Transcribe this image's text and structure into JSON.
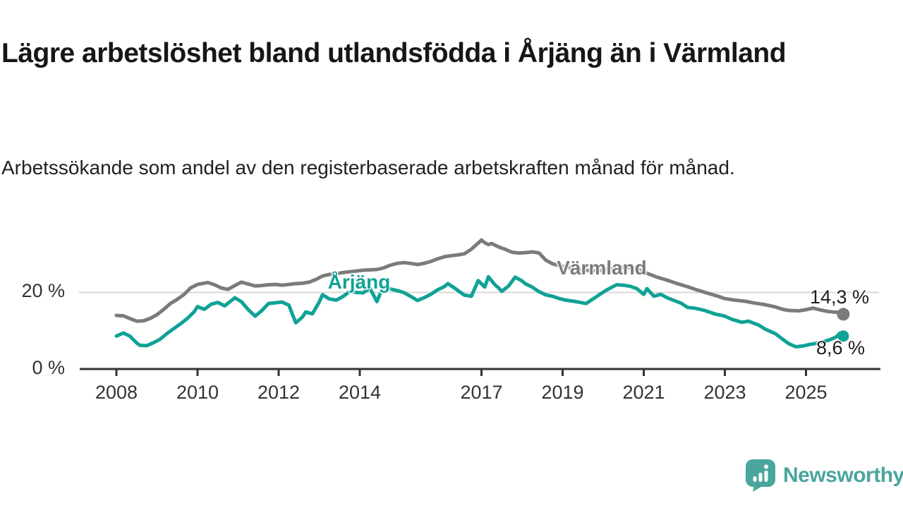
{
  "title": "Lägre arbetslöshet bland utlandsfödda i Årjäng än i Värmland",
  "subtitle": "Arbetssökande som andel av den registerbaserade arbetskraften månad för månad.",
  "branding": {
    "logo_text": "Newsworthy",
    "logo_color": "#4aa59d"
  },
  "chart_data": {
    "type": "line",
    "title": "Lägre arbetslöshet bland utlandsfödda i Årjäng än i Värmland",
    "subtitle": "Arbetssökande som andel av den registerbaserade arbetskraften månad för månad.",
    "unit": "%",
    "x_range": [
      2008,
      2026
    ],
    "ylim": [
      0,
      36
    ],
    "grid": "horizontal line at 20 % only",
    "legend_position": "inline labels on lines",
    "y_ticks": [
      {
        "label": "0 %",
        "value": 0
      },
      {
        "label": "20 %",
        "value": 20
      }
    ],
    "x_ticks": [
      {
        "label": "2008",
        "year": 2008
      },
      {
        "label": "2010",
        "year": 2010
      },
      {
        "label": "2012",
        "year": 2012
      },
      {
        "label": "2014",
        "year": 2014
      },
      {
        "label": "2017",
        "year": 2017
      },
      {
        "label": "2019",
        "year": 2019
      },
      {
        "label": "2021",
        "year": 2021
      },
      {
        "label": "2023",
        "year": 2023
      },
      {
        "label": "2025",
        "year": 2025
      }
    ],
    "series": [
      {
        "name": "Värmland",
        "color": "#7b7b7b",
        "end_label": "14,3 %",
        "end_value": 14.3,
        "points": [
          [
            2008.0,
            14.0
          ],
          [
            2008.17,
            13.9
          ],
          [
            2008.33,
            13.2
          ],
          [
            2008.5,
            12.5
          ],
          [
            2008.67,
            12.6
          ],
          [
            2008.83,
            13.2
          ],
          [
            2009.0,
            14.2
          ],
          [
            2009.17,
            15.6
          ],
          [
            2009.33,
            17.1
          ],
          [
            2009.5,
            18.2
          ],
          [
            2009.67,
            19.5
          ],
          [
            2009.83,
            21.2
          ],
          [
            2010.0,
            22.1
          ],
          [
            2010.25,
            22.6
          ],
          [
            2010.42,
            22.0
          ],
          [
            2010.58,
            21.2
          ],
          [
            2010.75,
            20.8
          ],
          [
            2010.92,
            21.8
          ],
          [
            2011.08,
            22.7
          ],
          [
            2011.25,
            22.2
          ],
          [
            2011.42,
            21.7
          ],
          [
            2011.58,
            21.8
          ],
          [
            2011.75,
            22.0
          ],
          [
            2011.92,
            22.1
          ],
          [
            2012.08,
            21.9
          ],
          [
            2012.25,
            22.1
          ],
          [
            2012.42,
            22.3
          ],
          [
            2012.58,
            22.4
          ],
          [
            2012.75,
            22.7
          ],
          [
            2012.92,
            23.4
          ],
          [
            2013.08,
            24.3
          ],
          [
            2013.25,
            24.7
          ],
          [
            2013.42,
            24.9
          ],
          [
            2013.58,
            25.2
          ],
          [
            2013.75,
            25.4
          ],
          [
            2013.92,
            25.6
          ],
          [
            2014.08,
            25.8
          ],
          [
            2014.25,
            25.9
          ],
          [
            2014.42,
            26.0
          ],
          [
            2014.58,
            26.4
          ],
          [
            2014.75,
            27.1
          ],
          [
            2014.92,
            27.6
          ],
          [
            2015.08,
            27.8
          ],
          [
            2015.25,
            27.6
          ],
          [
            2015.42,
            27.3
          ],
          [
            2015.58,
            27.6
          ],
          [
            2015.75,
            28.1
          ],
          [
            2015.92,
            28.8
          ],
          [
            2016.08,
            29.3
          ],
          [
            2016.25,
            29.6
          ],
          [
            2016.42,
            29.8
          ],
          [
            2016.58,
            30.1
          ],
          [
            2016.75,
            31.3
          ],
          [
            2016.92,
            32.9
          ],
          [
            2017.0,
            33.7
          ],
          [
            2017.08,
            33.0
          ],
          [
            2017.17,
            32.5
          ],
          [
            2017.25,
            32.8
          ],
          [
            2017.42,
            31.9
          ],
          [
            2017.58,
            31.3
          ],
          [
            2017.75,
            30.5
          ],
          [
            2017.92,
            30.3
          ],
          [
            2018.08,
            30.4
          ],
          [
            2018.25,
            30.6
          ],
          [
            2018.42,
            30.3
          ],
          [
            2018.58,
            28.5
          ],
          [
            2018.75,
            27.5
          ],
          [
            2018.92,
            27.0
          ],
          [
            2019.17,
            26.5
          ],
          [
            2019.42,
            26.0
          ],
          [
            2019.67,
            25.7
          ],
          [
            2019.92,
            25.7
          ],
          [
            2020.17,
            26.2
          ],
          [
            2020.42,
            26.6
          ],
          [
            2020.67,
            26.4
          ],
          [
            2020.92,
            25.8
          ],
          [
            2021.08,
            25.0
          ],
          [
            2021.33,
            24.0
          ],
          [
            2021.58,
            23.2
          ],
          [
            2021.83,
            22.3
          ],
          [
            2022.08,
            21.5
          ],
          [
            2022.33,
            20.6
          ],
          [
            2022.58,
            19.8
          ],
          [
            2022.83,
            19.0
          ],
          [
            2023.0,
            18.4
          ],
          [
            2023.25,
            18.0
          ],
          [
            2023.5,
            17.7
          ],
          [
            2023.75,
            17.2
          ],
          [
            2024.0,
            16.8
          ],
          [
            2024.25,
            16.2
          ],
          [
            2024.42,
            15.6
          ],
          [
            2024.58,
            15.3
          ],
          [
            2024.83,
            15.2
          ],
          [
            2025.0,
            15.5
          ],
          [
            2025.17,
            15.9
          ],
          [
            2025.33,
            15.5
          ],
          [
            2025.5,
            15.1
          ],
          [
            2025.67,
            14.9
          ],
          [
            2025.83,
            14.8
          ],
          [
            2025.92,
            14.3
          ]
        ]
      },
      {
        "name": "Årjäng",
        "color": "#10a296",
        "end_label": "8,6 %",
        "end_value": 8.6,
        "points": [
          [
            2008.0,
            8.6
          ],
          [
            2008.17,
            9.4
          ],
          [
            2008.33,
            8.6
          ],
          [
            2008.5,
            6.8
          ],
          [
            2008.58,
            6.2
          ],
          [
            2008.75,
            6.1
          ],
          [
            2008.92,
            6.9
          ],
          [
            2009.08,
            7.8
          ],
          [
            2009.25,
            9.3
          ],
          [
            2009.42,
            10.6
          ],
          [
            2009.58,
            11.8
          ],
          [
            2009.75,
            13.2
          ],
          [
            2009.92,
            15.0
          ],
          [
            2010.0,
            16.3
          ],
          [
            2010.17,
            15.6
          ],
          [
            2010.33,
            16.9
          ],
          [
            2010.5,
            17.4
          ],
          [
            2010.67,
            16.5
          ],
          [
            2010.92,
            18.6
          ],
          [
            2011.08,
            17.6
          ],
          [
            2011.25,
            15.5
          ],
          [
            2011.42,
            13.8
          ],
          [
            2011.58,
            15.2
          ],
          [
            2011.75,
            17.1
          ],
          [
            2011.92,
            17.3
          ],
          [
            2012.08,
            17.5
          ],
          [
            2012.25,
            16.7
          ],
          [
            2012.42,
            12.1
          ],
          [
            2012.58,
            13.5
          ],
          [
            2012.67,
            14.9
          ],
          [
            2012.83,
            14.4
          ],
          [
            2013.0,
            17.5
          ],
          [
            2013.08,
            19.4
          ],
          [
            2013.25,
            18.3
          ],
          [
            2013.42,
            18.0
          ],
          [
            2013.58,
            18.9
          ],
          [
            2013.75,
            20.2
          ],
          [
            2013.92,
            20.0
          ],
          [
            2014.08,
            19.9
          ],
          [
            2014.25,
            21.1
          ],
          [
            2014.42,
            17.6
          ],
          [
            2014.58,
            21.7
          ],
          [
            2014.75,
            20.9
          ],
          [
            2014.92,
            20.5
          ],
          [
            2015.08,
            20.0
          ],
          [
            2015.25,
            19.0
          ],
          [
            2015.42,
            17.9
          ],
          [
            2015.58,
            18.6
          ],
          [
            2015.75,
            19.5
          ],
          [
            2015.92,
            20.7
          ],
          [
            2016.08,
            21.5
          ],
          [
            2016.17,
            22.3
          ],
          [
            2016.33,
            21.2
          ],
          [
            2016.42,
            20.5
          ],
          [
            2016.58,
            19.3
          ],
          [
            2016.75,
            19.0
          ],
          [
            2016.92,
            23.1
          ],
          [
            2017.08,
            21.4
          ],
          [
            2017.17,
            24.1
          ],
          [
            2017.33,
            22.0
          ],
          [
            2017.42,
            21.2
          ],
          [
            2017.5,
            20.3
          ],
          [
            2017.67,
            21.7
          ],
          [
            2017.83,
            24.0
          ],
          [
            2018.0,
            23.0
          ],
          [
            2018.08,
            22.3
          ],
          [
            2018.25,
            21.4
          ],
          [
            2018.42,
            20.2
          ],
          [
            2018.58,
            19.4
          ],
          [
            2018.75,
            19.0
          ],
          [
            2018.92,
            18.4
          ],
          [
            2019.08,
            18.0
          ],
          [
            2019.33,
            17.6
          ],
          [
            2019.58,
            17.1
          ],
          [
            2019.75,
            18.3
          ],
          [
            2019.92,
            19.5
          ],
          [
            2020.08,
            20.6
          ],
          [
            2020.33,
            22.0
          ],
          [
            2020.5,
            21.9
          ],
          [
            2020.67,
            21.6
          ],
          [
            2020.83,
            21.0
          ],
          [
            2021.0,
            19.5
          ],
          [
            2021.08,
            21.0
          ],
          [
            2021.25,
            19.0
          ],
          [
            2021.42,
            19.5
          ],
          [
            2021.58,
            18.6
          ],
          [
            2021.75,
            17.9
          ],
          [
            2021.92,
            17.2
          ],
          [
            2022.08,
            16.1
          ],
          [
            2022.25,
            15.9
          ],
          [
            2022.5,
            15.3
          ],
          [
            2022.75,
            14.4
          ],
          [
            2023.0,
            13.8
          ],
          [
            2023.17,
            13.0
          ],
          [
            2023.42,
            12.2
          ],
          [
            2023.58,
            12.5
          ],
          [
            2023.83,
            11.5
          ],
          [
            2024.0,
            10.4
          ],
          [
            2024.25,
            9.2
          ],
          [
            2024.42,
            7.8
          ],
          [
            2024.58,
            6.6
          ],
          [
            2024.75,
            5.8
          ],
          [
            2024.92,
            6.0
          ],
          [
            2025.08,
            6.4
          ],
          [
            2025.25,
            6.7
          ],
          [
            2025.42,
            7.1
          ],
          [
            2025.58,
            7.6
          ],
          [
            2025.75,
            8.4
          ],
          [
            2025.83,
            9.3
          ],
          [
            2025.92,
            8.6
          ]
        ]
      }
    ]
  }
}
